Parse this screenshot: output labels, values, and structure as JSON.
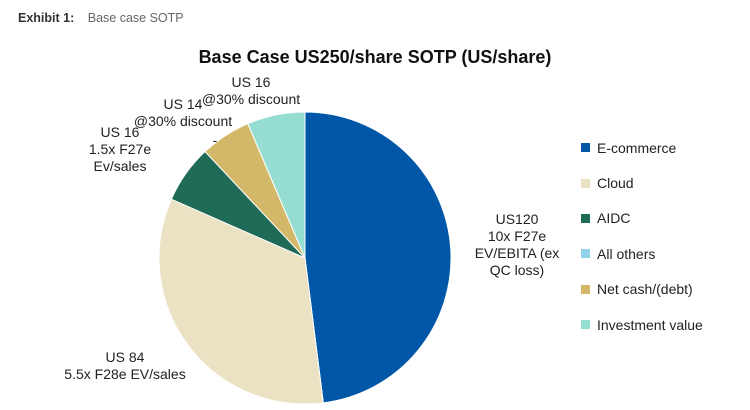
{
  "exhibit": {
    "label": "Exhibit 1:",
    "title": "Base case SOTP"
  },
  "chart_data": {
    "type": "pie",
    "title": "Base Case US250/share SOTP (US/share)",
    "legend_position": "right",
    "slices": [
      {
        "name": "E-commerce",
        "value": 120,
        "color": "#0057a8",
        "label_lines": [
          "US120",
          "10x F27e",
          "EV/EBITA (ex",
          "QC loss)"
        ]
      },
      {
        "name": "Cloud",
        "value": 84,
        "color": "#ebe2c4",
        "label_lines": [
          "US 84",
          "5.5x F28e EV/sales"
        ]
      },
      {
        "name": "AIDC",
        "value": 16,
        "color": "#1f6b58",
        "label_lines": [
          "US 16",
          "1.5x F27e",
          "Ev/sales"
        ]
      },
      {
        "name": "All others",
        "value": 0,
        "color": "#8fd2ea",
        "label_lines": [
          "-"
        ]
      },
      {
        "name": "Net cash/(debt)",
        "value": 14,
        "color": "#d4b86a",
        "label_lines": [
          "US 14",
          "@30% discount"
        ]
      },
      {
        "name": "Investment value",
        "value": 16,
        "color": "#94ddd0",
        "label_lines": [
          "US 16",
          "@30% discount"
        ]
      }
    ]
  }
}
